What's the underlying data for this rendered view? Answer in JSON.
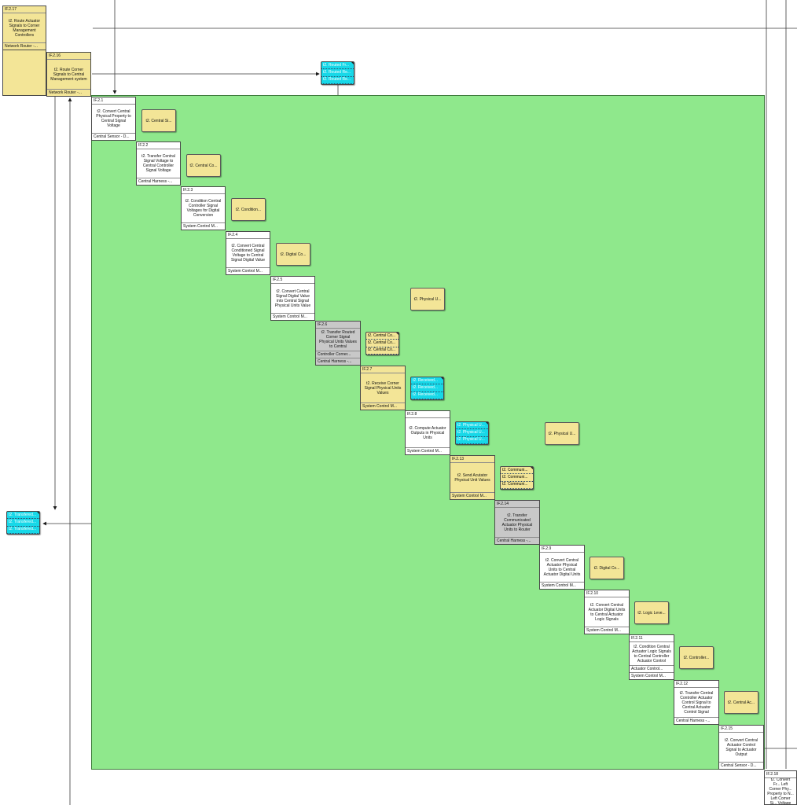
{
  "functions": {
    "f217": {
      "id": "IF.2.17",
      "name": "t2. Route Actuator Signals to Corner Management Controllers",
      "owner": "Network Router -..."
    },
    "f216": {
      "id": "IF.2.16",
      "name": "t2. Route Corner Signals to Central Management system",
      "owner": "Network Router -..."
    },
    "f21": {
      "id": "IF.2.1",
      "name": "t2. Convert Central Physical Property to Central Signal Voltage",
      "owner": "Central Sensor - D..."
    },
    "f22": {
      "id": "IF.2.2",
      "name": "t2. Transfer Central Signal Voltage to Central Controller Signal Voltage",
      "owner": "Central Harness -..."
    },
    "f23": {
      "id": "IF.2.3",
      "name": "t2. Condition Central Controller Signal Voltages for Digital Conversion",
      "owner": "System Control M..."
    },
    "f24": {
      "id": "IF.2.4",
      "name": "t2. Convert Central Conditioned Signal Voltage to Central Signal Digital Value",
      "owner": "System Control M..."
    },
    "f25": {
      "id": "IF.2.5",
      "name": "t2. Convert Central Signal Digital Value into Central Signal Physical Units Value",
      "owner": "System Control M..."
    },
    "f26": {
      "id": "IF.2.6",
      "name": "t2. Transfer Routed Corner Signal Physical Units Values to Central",
      "owner": "Central Harness -...",
      "owner2": "Controller Corner..."
    },
    "f27": {
      "id": "IF.2.7",
      "name": "t2. Receive Corner Signal Physical Units Values",
      "owner": "System Control M..."
    },
    "f28": {
      "id": "IF.2.8",
      "name": "t2. Compute Actuator Outputs in Physical Units",
      "owner": "System Control M..."
    },
    "f213": {
      "id": "IF.2.13",
      "name": "t2. Send Acutator Physical Unit Values",
      "owner": "System Control M..."
    },
    "f214": {
      "id": "IF.2.14",
      "name": "t2. Transfer Communicated Actuator Physical Units to Router",
      "owner": "Central Harness -..."
    },
    "f29": {
      "id": "IF.2.9",
      "name": "t2. Convert Central Actuator Physical Units to Central Actuator Digital Units",
      "owner": "System Control M..."
    },
    "f210": {
      "id": "IF.2.10",
      "name": "t2. Convert Central Actuator Digital Units to Central Actuator Logic Signals",
      "owner": "System Control M..."
    },
    "f211": {
      "id": "IF.2.11",
      "name": "t2. Condition Central Actuator Logic Signals to Central Controller Actuator Control",
      "owner": "System Control M...",
      "owner2": "Actuator Control..."
    },
    "f212": {
      "id": "IF.2.12",
      "name": "t2. Transfer Central Controller Actuator Control Signal to Central Actuator Control Signal",
      "owner": "Central Harness -..."
    },
    "f215": {
      "id": "IF.2.15",
      "name": "t2. Convert Central Actuator Control Signal to Actuator Output",
      "owner": "Central Sensor - D..."
    },
    "f218": {
      "id": "IF.2.18",
      "name": "t2. Convert Fr... Left Corner Phy... Property to N... Left Corner Si... Voltage",
      "owner": ""
    }
  },
  "items": {
    "i1": "t2. Central Si...",
    "i2": "t2. Central Co...",
    "i3": "t2. Condition...",
    "i4": "t2. Digital Co...",
    "i5": "t2. Physical U...",
    "i6": "t2. Physical U...",
    "i7": "t2. Digital Co...",
    "i8": "t2. Logic Leve...",
    "i9": "t2. Controller...",
    "i10": "t2. Central Ac..."
  },
  "stacks": {
    "routed": [
      "t2. Routed Fr...",
      "t2. Routed Re...",
      "t2. Routed Re..."
    ],
    "centralco": [
      "t2. Central Co...",
      "t2. Central Co...",
      "t2. Central Co..."
    ],
    "received": [
      "t2. Received...",
      "t2. Received...",
      "t2. Received..."
    ],
    "physical": [
      "t2. Physical U...",
      "t2. Physical U...",
      "t2. Physical U..."
    ],
    "communi": [
      "t2. Communi...",
      "t2. Communi...",
      "t2. Communi..."
    ],
    "transfered": [
      "t2. Transfered...",
      "t2. Transfered...",
      "t2. Transfered..."
    ]
  },
  "colors": {
    "region": "#8fe88c",
    "function_white": "#ffffff",
    "function_yellow": "#f3e597",
    "function_gray": "#c8c8c8",
    "item_yellow": "#f3e597",
    "item_cyan": "#17d8e8"
  }
}
